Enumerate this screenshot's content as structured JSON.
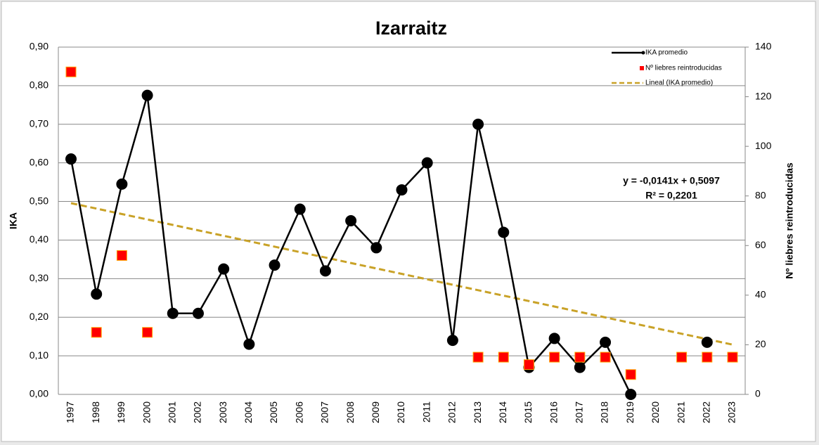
{
  "chart_data": {
    "type": "line",
    "title": "Izarraitz",
    "y_label": "IKA",
    "y2_label": "Nº liebres reintroducidas",
    "categories": [
      "1997",
      "1998",
      "1999",
      "2000",
      "2001",
      "2002",
      "2003",
      "2004",
      "2005",
      "2006",
      "2007",
      "2008",
      "2009",
      "2010",
      "2011",
      "2012",
      "2013",
      "2014",
      "2015",
      "2016",
      "2017",
      "2018",
      "2019",
      "2020",
      "2021",
      "2022",
      "2023"
    ],
    "series": [
      {
        "name": "IKA promedio",
        "color": "#000000",
        "marker": "circle",
        "values": [
          0.61,
          0.26,
          0.545,
          0.775,
          0.21,
          0.21,
          0.325,
          0.13,
          0.335,
          0.48,
          0.32,
          0.45,
          0.38,
          0.53,
          0.6,
          0.14,
          0.7,
          0.42,
          0.07,
          0.145,
          0.07,
          0.135,
          0.0,
          null,
          null,
          0.135,
          null
        ]
      },
      {
        "name": "Nº liebres reintroducidas",
        "color": "#ff0000",
        "marker": "square",
        "axis": "y2",
        "values": [
          130,
          25,
          56,
          25,
          null,
          null,
          null,
          null,
          null,
          null,
          null,
          null,
          null,
          null,
          null,
          null,
          15,
          15,
          12,
          15,
          15,
          15,
          8,
          null,
          15,
          15,
          15
        ]
      }
    ],
    "trend": {
      "name": "Lineal (IKA promedio)",
      "color": "#c9a227",
      "slope": -0.0141,
      "intercept": 0.5097,
      "equation": "y = -0,0141x + 0,5097",
      "r2": "R² = 0,2201",
      "label_color": "#9c8f2b"
    },
    "ylim": [
      0,
      0.9
    ],
    "yticks": [
      {
        "value": 0,
        "label": "0,00"
      },
      {
        "value": 0.1,
        "label": "0,10"
      },
      {
        "value": 0.2,
        "label": "0,20"
      },
      {
        "value": 0.3,
        "label": "0,30"
      },
      {
        "value": 0.4,
        "label": "0,40"
      },
      {
        "value": 0.5,
        "label": "0,50"
      },
      {
        "value": 0.6,
        "label": "0,60"
      },
      {
        "value": 0.7,
        "label": "0,70"
      },
      {
        "value": 0.8,
        "label": "0,80"
      },
      {
        "value": 0.9,
        "label": "0,90"
      }
    ],
    "y2lim": [
      0,
      140
    ],
    "y2ticks": [
      0,
      20,
      40,
      60,
      80,
      100,
      120,
      140
    ],
    "grid": true,
    "legend": "top-right"
  }
}
